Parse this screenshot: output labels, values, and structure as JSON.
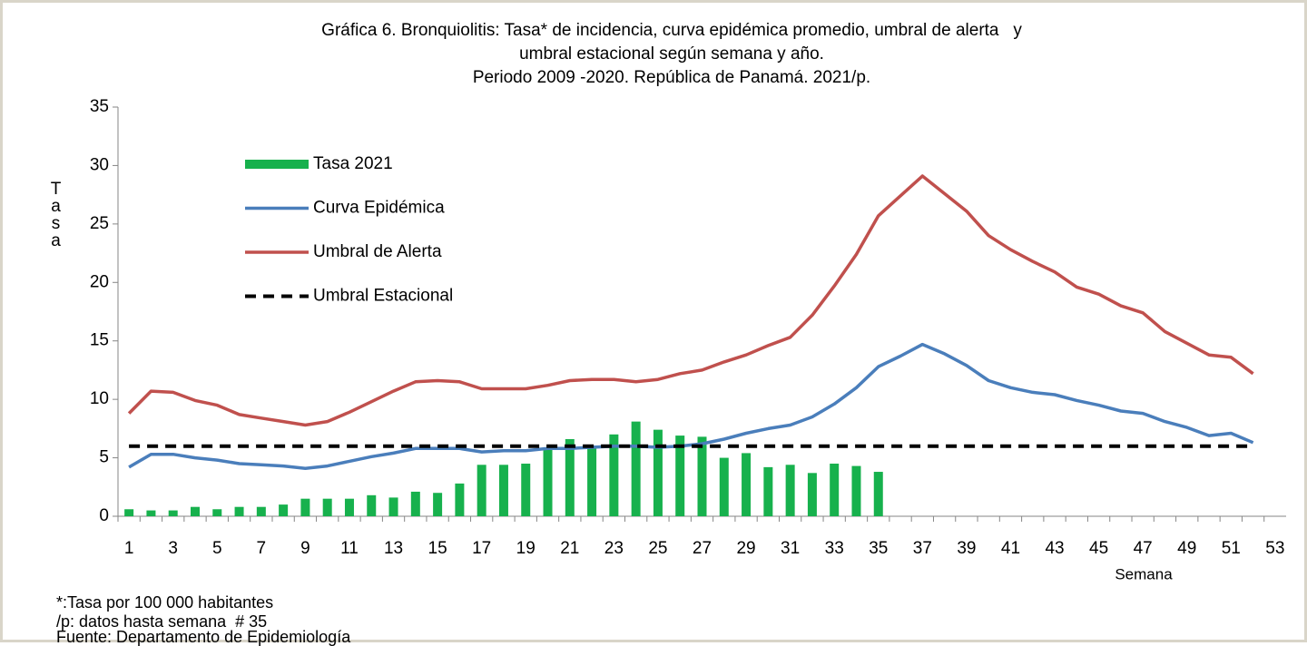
{
  "chart_data": {
    "type": "combo",
    "title": [
      "Gráfica 6. Bronquiolitis: Tasa* de incidencia, curva epidémica promedio, umbral de alerta   y",
      "umbral estacional según semana y año.",
      "Periodo 2009 -2020. República de Panamá. 2021/p."
    ],
    "y_label": "Tasa",
    "x_label": "Semana",
    "notes": [
      "*:Tasa por 100 000 habitantes",
      "/p: datos hasta semana  # 35",
      "Fuente: Departamento de Epidemiología"
    ],
    "categories": [
      1,
      null,
      3,
      null,
      5,
      null,
      7,
      null,
      9,
      null,
      11,
      null,
      13,
      null,
      15,
      null,
      17,
      null,
      19,
      null,
      21,
      null,
      23,
      null,
      25,
      null,
      27,
      null,
      29,
      null,
      31,
      null,
      33,
      null,
      35,
      null,
      37,
      null,
      39,
      null,
      41,
      null,
      43,
      null,
      45,
      null,
      47,
      null,
      49,
      null,
      51,
      null,
      53
    ],
    "ylim": [
      0,
      35
    ],
    "yticks": [
      0,
      5,
      10,
      15,
      20,
      25,
      30,
      35
    ],
    "series": [
      {
        "name": "Tasa 2021",
        "kind": "bar",
        "color": "#17b14d",
        "values": [
          0.6,
          0.5,
          0.5,
          0.8,
          0.6,
          0.8,
          0.8,
          1.0,
          1.5,
          1.5,
          1.5,
          1.8,
          1.6,
          2.1,
          2.0,
          2.8,
          4.4,
          4.4,
          4.5,
          5.8,
          6.6,
          6.0,
          7.0,
          8.1,
          7.4,
          6.9,
          6.8,
          5.0,
          5.4,
          4.2,
          4.4,
          3.7,
          4.5,
          4.3,
          3.8,
          null,
          null,
          null,
          null,
          null,
          null,
          null,
          null,
          null,
          null,
          null,
          null,
          null,
          null,
          null,
          null,
          null,
          null
        ]
      },
      {
        "name": "Curva Epidémica",
        "kind": "line",
        "color": "#4a7ebb",
        "values": [
          4.2,
          5.3,
          5.3,
          5.0,
          4.8,
          4.5,
          4.4,
          4.3,
          4.1,
          4.3,
          4.7,
          5.1,
          5.4,
          5.8,
          5.8,
          5.8,
          5.5,
          5.6,
          5.6,
          5.8,
          5.8,
          5.9,
          6.0,
          6.0,
          5.9,
          6.0,
          6.2,
          6.6,
          7.1,
          7.5,
          7.8,
          8.5,
          9.6,
          11.0,
          12.8,
          13.7,
          14.7,
          13.9,
          12.9,
          11.6,
          11.0,
          10.6,
          10.4,
          9.9,
          9.5,
          9.0,
          8.8,
          8.1,
          7.6,
          6.9,
          7.1,
          6.3,
          null
        ]
      },
      {
        "name": "Umbral de Alerta",
        "kind": "line",
        "color": "#c0504d",
        "values": [
          8.8,
          10.7,
          10.6,
          9.9,
          9.5,
          8.7,
          8.4,
          8.1,
          7.8,
          8.1,
          8.9,
          9.8,
          10.7,
          11.5,
          11.6,
          11.5,
          10.9,
          10.9,
          10.9,
          11.2,
          11.6,
          11.7,
          11.7,
          11.5,
          11.7,
          12.2,
          12.5,
          13.2,
          13.8,
          14.6,
          15.3,
          17.2,
          19.7,
          22.4,
          25.7,
          27.4,
          29.1,
          27.6,
          26.1,
          24.0,
          22.8,
          21.8,
          20.9,
          19.6,
          19.0,
          18.0,
          17.4,
          15.8,
          14.8,
          13.8,
          13.6,
          12.2,
          null
        ]
      },
      {
        "name": "Umbral Estacional",
        "kind": "line",
        "dashed": true,
        "color": "#000000",
        "values": [
          6,
          6,
          6,
          6,
          6,
          6,
          6,
          6,
          6,
          6,
          6,
          6,
          6,
          6,
          6,
          6,
          6,
          6,
          6,
          6,
          6,
          6,
          6,
          6,
          6,
          6,
          6,
          6,
          6,
          6,
          6,
          6,
          6,
          6,
          6,
          6,
          6,
          6,
          6,
          6,
          6,
          6,
          6,
          6,
          6,
          6,
          6,
          6,
          6,
          6,
          6,
          6,
          null
        ]
      }
    ]
  }
}
